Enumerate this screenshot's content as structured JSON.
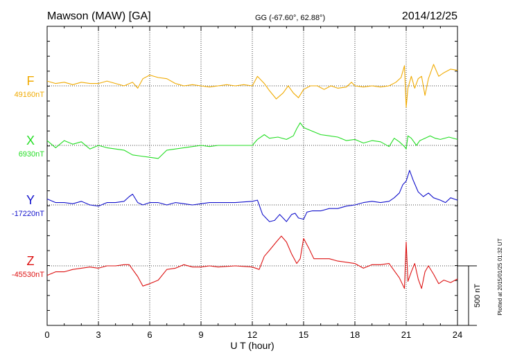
{
  "header": {
    "title": "Mawson (MAW)  [GA]",
    "coords": "GG (-67.60°,  62.88°)",
    "date": "2014/12/25"
  },
  "side_note": "Plotted at 2015/01/25 01:32 UT",
  "chart_data": {
    "type": "line",
    "xlabel": "U T (hour)",
    "x_ticks": [
      "0",
      "3",
      "6",
      "9",
      "12",
      "15",
      "18",
      "21",
      "24"
    ],
    "xlim": [
      0,
      24
    ],
    "grid": true,
    "scale_bar_label": "500 nT",
    "scale_bar_nT": 500,
    "series": [
      {
        "name": "F",
        "baseline_label": "49160nT",
        "color": "#f0aa00",
        "points": [
          [
            0,
            40
          ],
          [
            0.5,
            20
          ],
          [
            1,
            30
          ],
          [
            1.5,
            10
          ],
          [
            2,
            30
          ],
          [
            2.5,
            20
          ],
          [
            3,
            20
          ],
          [
            3.5,
            40
          ],
          [
            4,
            20
          ],
          [
            4.5,
            0
          ],
          [
            5,
            30
          ],
          [
            5.3,
            -20
          ],
          [
            5.6,
            60
          ],
          [
            6,
            90
          ],
          [
            6.5,
            70
          ],
          [
            7,
            60
          ],
          [
            7.5,
            20
          ],
          [
            8,
            0
          ],
          [
            8.5,
            10
          ],
          [
            9,
            0
          ],
          [
            9.5,
            -10
          ],
          [
            10,
            0
          ],
          [
            10.5,
            10
          ],
          [
            11,
            0
          ],
          [
            11.5,
            10
          ],
          [
            12,
            0
          ],
          [
            12.3,
            80
          ],
          [
            12.7,
            20
          ],
          [
            13,
            -40
          ],
          [
            13.4,
            -110
          ],
          [
            13.8,
            -60
          ],
          [
            14.1,
            0
          ],
          [
            14.4,
            -60
          ],
          [
            14.7,
            -100
          ],
          [
            15,
            -30
          ],
          [
            15.4,
            0
          ],
          [
            15.8,
            0
          ],
          [
            16.2,
            -30
          ],
          [
            16.6,
            0
          ],
          [
            17,
            -20
          ],
          [
            17.5,
            -10
          ],
          [
            17.8,
            30
          ],
          [
            18,
            0
          ],
          [
            18.5,
            -10
          ],
          [
            19,
            0
          ],
          [
            19.5,
            -10
          ],
          [
            20,
            0
          ],
          [
            20.4,
            30
          ],
          [
            20.7,
            70
          ],
          [
            20.9,
            170
          ],
          [
            21.0,
            -180
          ],
          [
            21.1,
            -20
          ],
          [
            21.3,
            80
          ],
          [
            21.5,
            -20
          ],
          [
            21.7,
            60
          ],
          [
            21.9,
            80
          ],
          [
            22.1,
            -80
          ],
          [
            22.3,
            60
          ],
          [
            22.6,
            180
          ],
          [
            22.9,
            80
          ],
          [
            23.2,
            110
          ],
          [
            23.6,
            140
          ],
          [
            24,
            130
          ]
        ]
      },
      {
        "name": "X",
        "baseline_label": "6930nT",
        "color": "#22dd22",
        "points": [
          [
            0,
            40
          ],
          [
            0.5,
            -20
          ],
          [
            1,
            40
          ],
          [
            1.5,
            10
          ],
          [
            2,
            30
          ],
          [
            2.5,
            -30
          ],
          [
            3,
            0
          ],
          [
            3.5,
            -20
          ],
          [
            4,
            -30
          ],
          [
            4.5,
            -40
          ],
          [
            5,
            -80
          ],
          [
            5.5,
            -90
          ],
          [
            6,
            -100
          ],
          [
            6.5,
            -110
          ],
          [
            7,
            -40
          ],
          [
            7.5,
            -30
          ],
          [
            8,
            -20
          ],
          [
            8.5,
            -10
          ],
          [
            9,
            0
          ],
          [
            9.5,
            -10
          ],
          [
            10,
            0
          ],
          [
            11,
            0
          ],
          [
            12,
            0
          ],
          [
            12.3,
            50
          ],
          [
            12.7,
            90
          ],
          [
            13,
            60
          ],
          [
            13.5,
            70
          ],
          [
            14,
            50
          ],
          [
            14.4,
            80
          ],
          [
            14.6,
            140
          ],
          [
            14.8,
            190
          ],
          [
            15,
            150
          ],
          [
            15.5,
            120
          ],
          [
            16,
            90
          ],
          [
            16.5,
            80
          ],
          [
            17,
            70
          ],
          [
            17.5,
            40
          ],
          [
            18,
            50
          ],
          [
            18.5,
            20
          ],
          [
            19,
            40
          ],
          [
            19.5,
            30
          ],
          [
            20,
            -10
          ],
          [
            20.3,
            60
          ],
          [
            20.6,
            30
          ],
          [
            20.9,
            -10
          ],
          [
            21.0,
            -30
          ],
          [
            21.1,
            80
          ],
          [
            21.3,
            60
          ],
          [
            21.6,
            0
          ],
          [
            21.8,
            40
          ],
          [
            22.1,
            60
          ],
          [
            22.4,
            80
          ],
          [
            22.7,
            60
          ],
          [
            23,
            50
          ],
          [
            23.5,
            70
          ],
          [
            24,
            50
          ]
        ]
      },
      {
        "name": "Y",
        "baseline_label": "-17220nT",
        "color": "#1111cc",
        "points": [
          [
            0,
            50
          ],
          [
            0.5,
            20
          ],
          [
            1,
            20
          ],
          [
            1.5,
            10
          ],
          [
            2,
            30
          ],
          [
            2.5,
            0
          ],
          [
            3,
            -10
          ],
          [
            3.5,
            20
          ],
          [
            4,
            20
          ],
          [
            4.5,
            30
          ],
          [
            4.8,
            70
          ],
          [
            5,
            90
          ],
          [
            5.3,
            20
          ],
          [
            5.6,
            0
          ],
          [
            6,
            20
          ],
          [
            6.5,
            20
          ],
          [
            7,
            0
          ],
          [
            7.5,
            20
          ],
          [
            8,
            10
          ],
          [
            8.5,
            0
          ],
          [
            9,
            10
          ],
          [
            9.5,
            20
          ],
          [
            10,
            20
          ],
          [
            11,
            20
          ],
          [
            12,
            30
          ],
          [
            12.3,
            40
          ],
          [
            12.6,
            -80
          ],
          [
            13,
            -140
          ],
          [
            13.3,
            -130
          ],
          [
            13.6,
            -80
          ],
          [
            14,
            -140
          ],
          [
            14.3,
            -80
          ],
          [
            14.5,
            -70
          ],
          [
            14.7,
            -110
          ],
          [
            15,
            -120
          ],
          [
            15.2,
            -60
          ],
          [
            15.5,
            -50
          ],
          [
            16,
            -50
          ],
          [
            16.5,
            -30
          ],
          [
            17,
            -30
          ],
          [
            17.5,
            -10
          ],
          [
            18,
            0
          ],
          [
            18.5,
            20
          ],
          [
            19,
            30
          ],
          [
            19.5,
            20
          ],
          [
            20,
            30
          ],
          [
            20.3,
            60
          ],
          [
            20.6,
            100
          ],
          [
            20.8,
            170
          ],
          [
            21.0,
            200
          ],
          [
            21.2,
            290
          ],
          [
            21.4,
            210
          ],
          [
            21.7,
            110
          ],
          [
            22,
            70
          ],
          [
            22.3,
            100
          ],
          [
            22.6,
            60
          ],
          [
            23,
            40
          ],
          [
            23.3,
            20
          ],
          [
            23.6,
            60
          ],
          [
            24,
            40
          ]
        ]
      },
      {
        "name": "Z",
        "baseline_label": "-45530nT",
        "color": "#dd1111",
        "points": [
          [
            0,
            -80
          ],
          [
            0.5,
            -50
          ],
          [
            1,
            -50
          ],
          [
            1.5,
            -30
          ],
          [
            2,
            -20
          ],
          [
            2.5,
            -10
          ],
          [
            3,
            -20
          ],
          [
            3.5,
            0
          ],
          [
            4,
            0
          ],
          [
            4.5,
            10
          ],
          [
            4.8,
            10
          ],
          [
            5,
            -30
          ],
          [
            5.3,
            -90
          ],
          [
            5.6,
            -170
          ],
          [
            6,
            -150
          ],
          [
            6.5,
            -120
          ],
          [
            7,
            -30
          ],
          [
            7.5,
            -20
          ],
          [
            8,
            10
          ],
          [
            8.5,
            -10
          ],
          [
            9,
            -10
          ],
          [
            9.5,
            0
          ],
          [
            10,
            -10
          ],
          [
            11,
            0
          ],
          [
            12,
            -10
          ],
          [
            12.4,
            -30
          ],
          [
            12.7,
            80
          ],
          [
            13,
            130
          ],
          [
            13.4,
            200
          ],
          [
            13.7,
            250
          ],
          [
            14,
            200
          ],
          [
            14.3,
            100
          ],
          [
            14.6,
            20
          ],
          [
            14.8,
            60
          ],
          [
            15,
            230
          ],
          [
            15.3,
            150
          ],
          [
            15.6,
            60
          ],
          [
            16,
            60
          ],
          [
            16.5,
            60
          ],
          [
            17,
            40
          ],
          [
            17.5,
            30
          ],
          [
            18,
            20
          ],
          [
            18.5,
            -20
          ],
          [
            19,
            10
          ],
          [
            19.5,
            10
          ],
          [
            20,
            20
          ],
          [
            20.3,
            -40
          ],
          [
            20.6,
            -100
          ],
          [
            20.9,
            -190
          ],
          [
            21.0,
            200
          ],
          [
            21.1,
            -130
          ],
          [
            21.3,
            -50
          ],
          [
            21.5,
            20
          ],
          [
            21.7,
            -110
          ],
          [
            21.9,
            -190
          ],
          [
            22.1,
            -50
          ],
          [
            22.3,
            0
          ],
          [
            22.6,
            -70
          ],
          [
            22.9,
            -150
          ],
          [
            23.2,
            -120
          ],
          [
            23.6,
            -140
          ],
          [
            24,
            -110
          ]
        ]
      }
    ]
  }
}
